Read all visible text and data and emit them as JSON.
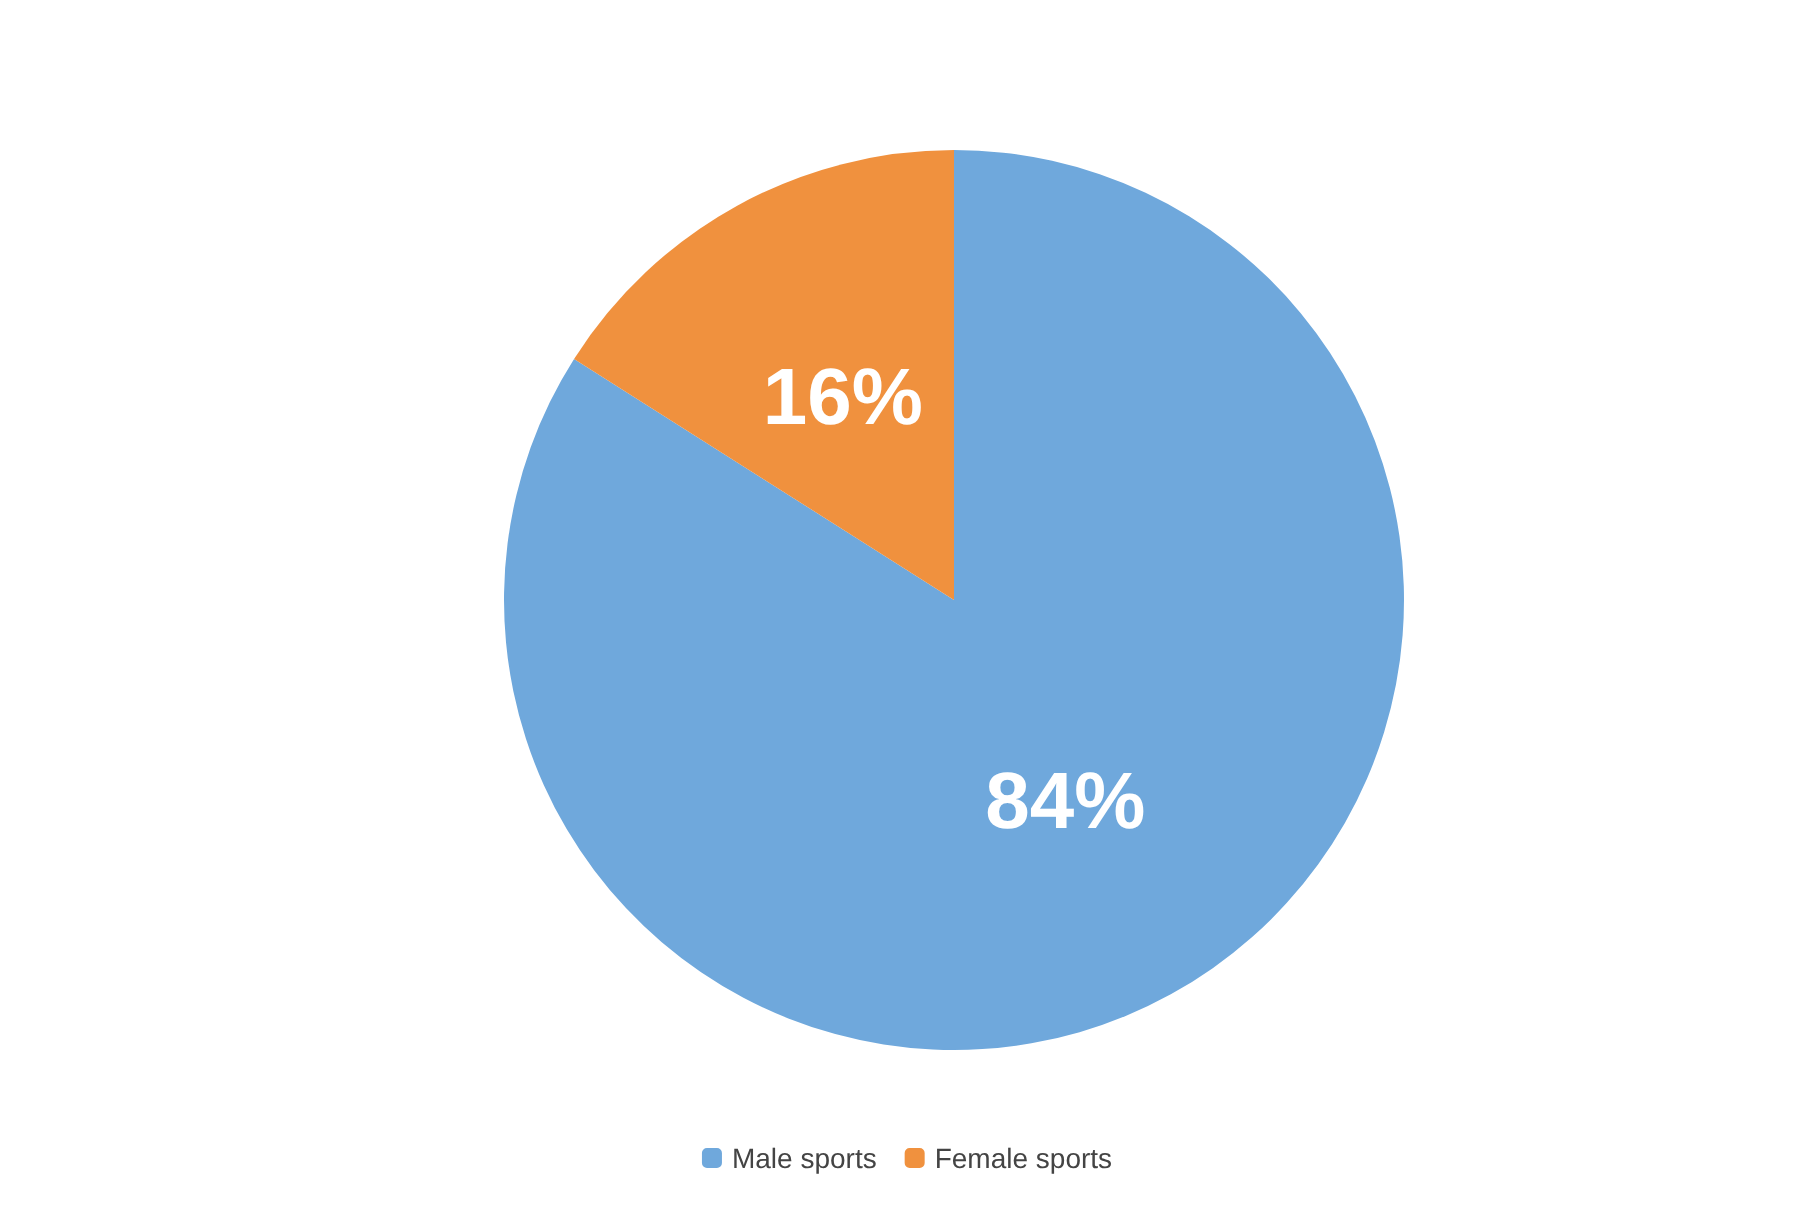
{
  "chart_data": {
    "type": "pie",
    "categories": [
      "Male sports",
      "Female sports"
    ],
    "values": [
      84,
      16
    ],
    "colors": [
      "#6fa8dc",
      "#f0913e"
    ],
    "value_labels": [
      "84%",
      "16%"
    ],
    "legend": "bottom"
  }
}
